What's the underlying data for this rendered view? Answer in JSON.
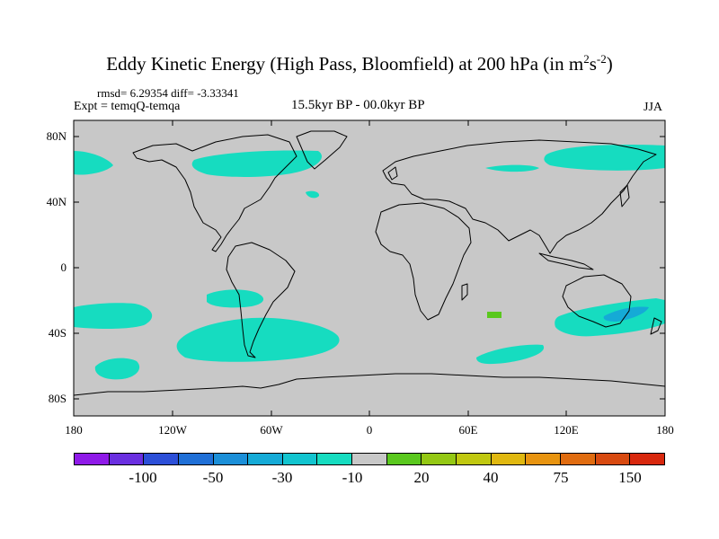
{
  "title": {
    "main": "Eddy Kinetic Energy (High Pass, Bloomfield) at 200 hPa (in m",
    "sup1": "2",
    "mid": "s",
    "sup2": "-2",
    "end": ")"
  },
  "stats": "rmsd= 6.29354 diff= -3.33341",
  "expt": "Expt = temqQ-temqa",
  "period": "15.5kyr BP - 00.0kyr BP",
  "season": "JJA",
  "lat_labels": [
    "80N",
    "40N",
    "0",
    "40S",
    "80S"
  ],
  "lon_labels": [
    "180",
    "120W",
    "60W",
    "0",
    "60E",
    "120E",
    "180"
  ],
  "colorbar": {
    "colors": [
      "#8f1ae8",
      "#6a2fe0",
      "#2c4fd8",
      "#1f6fd6",
      "#1b8fd8",
      "#15aad6",
      "#12c4cf",
      "#16dcc0",
      "#c8c8c8",
      "#5ac81e",
      "#94c814",
      "#c0c810",
      "#e0b810",
      "#e89410",
      "#e06c10",
      "#d84a10",
      "#d8280e"
    ],
    "labels": [
      "-100",
      "-50",
      "-30",
      "-10",
      "20",
      "40",
      "75",
      "150"
    ]
  },
  "map_colors": {
    "ocean": "#c8c8c8",
    "cyan": "#16dcc0",
    "blue": "#15aad6",
    "green": "#5ac81e"
  }
}
